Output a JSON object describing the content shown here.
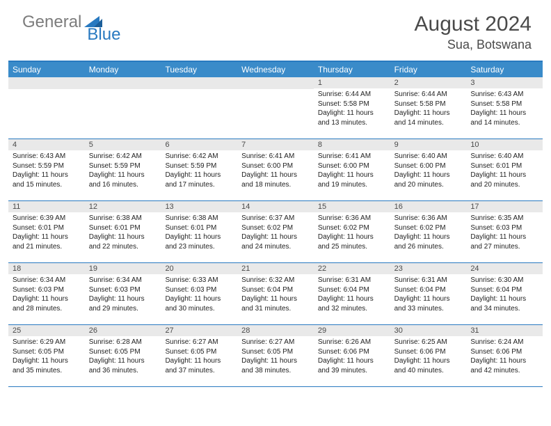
{
  "logo": {
    "part1": "General",
    "part2": "Blue"
  },
  "title": "August 2024",
  "location": "Sua, Botswana",
  "header_bg": "#3a8bc9",
  "border_color": "#2879c0",
  "daynum_bg": "#e9e9e9",
  "weekdays": [
    "Sunday",
    "Monday",
    "Tuesday",
    "Wednesday",
    "Thursday",
    "Friday",
    "Saturday"
  ],
  "weeks": [
    [
      {
        "n": "",
        "sr": "",
        "ss": "",
        "dl": ""
      },
      {
        "n": "",
        "sr": "",
        "ss": "",
        "dl": ""
      },
      {
        "n": "",
        "sr": "",
        "ss": "",
        "dl": ""
      },
      {
        "n": "",
        "sr": "",
        "ss": "",
        "dl": ""
      },
      {
        "n": "1",
        "sr": "Sunrise: 6:44 AM",
        "ss": "Sunset: 5:58 PM",
        "dl": "Daylight: 11 hours and 13 minutes."
      },
      {
        "n": "2",
        "sr": "Sunrise: 6:44 AM",
        "ss": "Sunset: 5:58 PM",
        "dl": "Daylight: 11 hours and 14 minutes."
      },
      {
        "n": "3",
        "sr": "Sunrise: 6:43 AM",
        "ss": "Sunset: 5:58 PM",
        "dl": "Daylight: 11 hours and 14 minutes."
      }
    ],
    [
      {
        "n": "4",
        "sr": "Sunrise: 6:43 AM",
        "ss": "Sunset: 5:59 PM",
        "dl": "Daylight: 11 hours and 15 minutes."
      },
      {
        "n": "5",
        "sr": "Sunrise: 6:42 AM",
        "ss": "Sunset: 5:59 PM",
        "dl": "Daylight: 11 hours and 16 minutes."
      },
      {
        "n": "6",
        "sr": "Sunrise: 6:42 AM",
        "ss": "Sunset: 5:59 PM",
        "dl": "Daylight: 11 hours and 17 minutes."
      },
      {
        "n": "7",
        "sr": "Sunrise: 6:41 AM",
        "ss": "Sunset: 6:00 PM",
        "dl": "Daylight: 11 hours and 18 minutes."
      },
      {
        "n": "8",
        "sr": "Sunrise: 6:41 AM",
        "ss": "Sunset: 6:00 PM",
        "dl": "Daylight: 11 hours and 19 minutes."
      },
      {
        "n": "9",
        "sr": "Sunrise: 6:40 AM",
        "ss": "Sunset: 6:00 PM",
        "dl": "Daylight: 11 hours and 20 minutes."
      },
      {
        "n": "10",
        "sr": "Sunrise: 6:40 AM",
        "ss": "Sunset: 6:01 PM",
        "dl": "Daylight: 11 hours and 20 minutes."
      }
    ],
    [
      {
        "n": "11",
        "sr": "Sunrise: 6:39 AM",
        "ss": "Sunset: 6:01 PM",
        "dl": "Daylight: 11 hours and 21 minutes."
      },
      {
        "n": "12",
        "sr": "Sunrise: 6:38 AM",
        "ss": "Sunset: 6:01 PM",
        "dl": "Daylight: 11 hours and 22 minutes."
      },
      {
        "n": "13",
        "sr": "Sunrise: 6:38 AM",
        "ss": "Sunset: 6:01 PM",
        "dl": "Daylight: 11 hours and 23 minutes."
      },
      {
        "n": "14",
        "sr": "Sunrise: 6:37 AM",
        "ss": "Sunset: 6:02 PM",
        "dl": "Daylight: 11 hours and 24 minutes."
      },
      {
        "n": "15",
        "sr": "Sunrise: 6:36 AM",
        "ss": "Sunset: 6:02 PM",
        "dl": "Daylight: 11 hours and 25 minutes."
      },
      {
        "n": "16",
        "sr": "Sunrise: 6:36 AM",
        "ss": "Sunset: 6:02 PM",
        "dl": "Daylight: 11 hours and 26 minutes."
      },
      {
        "n": "17",
        "sr": "Sunrise: 6:35 AM",
        "ss": "Sunset: 6:03 PM",
        "dl": "Daylight: 11 hours and 27 minutes."
      }
    ],
    [
      {
        "n": "18",
        "sr": "Sunrise: 6:34 AM",
        "ss": "Sunset: 6:03 PM",
        "dl": "Daylight: 11 hours and 28 minutes."
      },
      {
        "n": "19",
        "sr": "Sunrise: 6:34 AM",
        "ss": "Sunset: 6:03 PM",
        "dl": "Daylight: 11 hours and 29 minutes."
      },
      {
        "n": "20",
        "sr": "Sunrise: 6:33 AM",
        "ss": "Sunset: 6:03 PM",
        "dl": "Daylight: 11 hours and 30 minutes."
      },
      {
        "n": "21",
        "sr": "Sunrise: 6:32 AM",
        "ss": "Sunset: 6:04 PM",
        "dl": "Daylight: 11 hours and 31 minutes."
      },
      {
        "n": "22",
        "sr": "Sunrise: 6:31 AM",
        "ss": "Sunset: 6:04 PM",
        "dl": "Daylight: 11 hours and 32 minutes."
      },
      {
        "n": "23",
        "sr": "Sunrise: 6:31 AM",
        "ss": "Sunset: 6:04 PM",
        "dl": "Daylight: 11 hours and 33 minutes."
      },
      {
        "n": "24",
        "sr": "Sunrise: 6:30 AM",
        "ss": "Sunset: 6:04 PM",
        "dl": "Daylight: 11 hours and 34 minutes."
      }
    ],
    [
      {
        "n": "25",
        "sr": "Sunrise: 6:29 AM",
        "ss": "Sunset: 6:05 PM",
        "dl": "Daylight: 11 hours and 35 minutes."
      },
      {
        "n": "26",
        "sr": "Sunrise: 6:28 AM",
        "ss": "Sunset: 6:05 PM",
        "dl": "Daylight: 11 hours and 36 minutes."
      },
      {
        "n": "27",
        "sr": "Sunrise: 6:27 AM",
        "ss": "Sunset: 6:05 PM",
        "dl": "Daylight: 11 hours and 37 minutes."
      },
      {
        "n": "28",
        "sr": "Sunrise: 6:27 AM",
        "ss": "Sunset: 6:05 PM",
        "dl": "Daylight: 11 hours and 38 minutes."
      },
      {
        "n": "29",
        "sr": "Sunrise: 6:26 AM",
        "ss": "Sunset: 6:06 PM",
        "dl": "Daylight: 11 hours and 39 minutes."
      },
      {
        "n": "30",
        "sr": "Sunrise: 6:25 AM",
        "ss": "Sunset: 6:06 PM",
        "dl": "Daylight: 11 hours and 40 minutes."
      },
      {
        "n": "31",
        "sr": "Sunrise: 6:24 AM",
        "ss": "Sunset: 6:06 PM",
        "dl": "Daylight: 11 hours and 42 minutes."
      }
    ]
  ]
}
